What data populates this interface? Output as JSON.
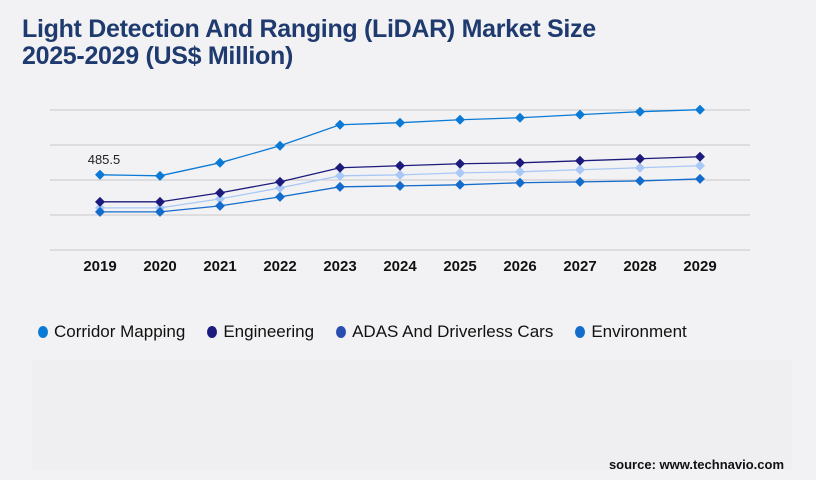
{
  "title_line1": "Light Detection And Ranging (LiDAR) Market Size",
  "title_line2": "2025-2029 (US$ Million)",
  "source": "source: www.technavio.com",
  "chart_data": {
    "type": "line",
    "title": "Light Detection And Ranging (LiDAR) Market Size 2025-2029 (US$ Million)",
    "categories": [
      "2019",
      "2020",
      "2021",
      "2022",
      "2023",
      "2024",
      "2025",
      "2026",
      "2027",
      "2028",
      "2029"
    ],
    "ylim": [
      0,
      1130
    ],
    "grid": true,
    "legend_position": "bottom",
    "annotation": "485.5",
    "series": [
      {
        "name": "Corridor Mapping",
        "color": "#0a7ad6",
        "values": [
          485.5,
          479,
          563,
          673,
          809,
          822,
          841,
          854,
          874,
          893,
          906
        ]
      },
      {
        "name": "Engineering",
        "color": "#1c1a7c",
        "values": [
          311,
          311,
          369,
          440,
          531,
          544,
          557,
          563,
          576,
          589,
          602
        ]
      },
      {
        "name": "ADAS And Driverless Cars",
        "color": "#a9c8f6",
        "legend_color": "#2a4db0",
        "values": [
          272,
          272,
          330,
          401,
          479,
          485,
          498,
          505,
          518,
          531,
          544
        ]
      },
      {
        "name": "Environment",
        "color": "#136ccc",
        "values": [
          246,
          246,
          285,
          343,
          408,
          414,
          421,
          434,
          440,
          446,
          459
        ]
      }
    ]
  }
}
